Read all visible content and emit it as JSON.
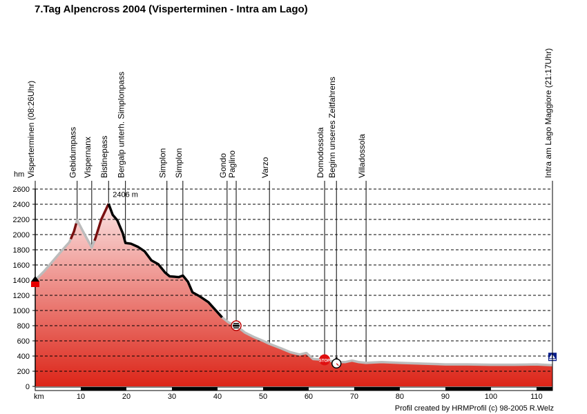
{
  "title": "7.Tag Alpencross 2004 (Visperterminen - Intra am Lago)",
  "credit": "Profil created by HRMProfil (c) 98-2005 R.Welz",
  "chart_data": {
    "type": "area",
    "title": "7.Tag Alpencross 2004 (Visperterminen - Intra am Lago)",
    "xlabel": "km",
    "ylabel": "hm",
    "xlim": [
      0,
      113.5
    ],
    "ylim": [
      0,
      2600
    ],
    "grid": true,
    "x_ticks": [
      10,
      20,
      30,
      40,
      50,
      60,
      70,
      80,
      90,
      100,
      110
    ],
    "y_ticks": [
      0,
      200,
      400,
      600,
      800,
      1000,
      1200,
      1400,
      1600,
      1800,
      2000,
      2200,
      2400,
      2600
    ],
    "max_annotation": {
      "label": "2406 m",
      "x": 16.1,
      "y": 2406
    },
    "profile": [
      [
        0,
        1400
      ],
      [
        2,
        1520
      ],
      [
        4,
        1660
      ],
      [
        6,
        1800
      ],
      [
        7.5,
        1900
      ],
      [
        8.5,
        2040
      ],
      [
        9.2,
        2190
      ],
      [
        10.5,
        2040
      ],
      [
        12.4,
        1830
      ],
      [
        13.2,
        1950
      ],
      [
        14.5,
        2200
      ],
      [
        16.1,
        2406
      ],
      [
        17,
        2260
      ],
      [
        18,
        2190
      ],
      [
        19.2,
        2020
      ],
      [
        19.8,
        1890
      ],
      [
        21,
        1880
      ],
      [
        22.5,
        1840
      ],
      [
        24,
        1780
      ],
      [
        25.5,
        1660
      ],
      [
        27,
        1610
      ],
      [
        28.5,
        1500
      ],
      [
        29.5,
        1450
      ],
      [
        31.5,
        1440
      ],
      [
        32.4,
        1460
      ],
      [
        33.5,
        1380
      ],
      [
        34.5,
        1240
      ],
      [
        36,
        1190
      ],
      [
        38,
        1110
      ],
      [
        39.5,
        1010
      ],
      [
        41,
        910
      ],
      [
        42.5,
        840
      ],
      [
        44.1,
        800
      ],
      [
        46,
        710
      ],
      [
        48,
        650
      ],
      [
        50,
        600
      ],
      [
        51.4,
        560
      ],
      [
        54,
        500
      ],
      [
        56,
        450
      ],
      [
        58,
        420
      ],
      [
        59.5,
        440
      ],
      [
        61,
        360
      ],
      [
        63.5,
        350
      ],
      [
        66.1,
        320
      ],
      [
        68,
        320
      ],
      [
        69.5,
        340
      ],
      [
        71,
        320
      ],
      [
        72.6,
        310
      ],
      [
        76,
        320
      ],
      [
        80,
        310
      ],
      [
        85,
        300
      ],
      [
        90,
        290
      ],
      [
        95,
        290
      ],
      [
        100,
        285
      ],
      [
        105,
        285
      ],
      [
        110,
        290
      ],
      [
        113.5,
        280
      ]
    ],
    "segments": [
      {
        "name": "ascent-gebidum",
        "color": "#7a1010",
        "range": [
          7.8,
          9.0
        ]
      },
      {
        "name": "ascent-bistine",
        "color": "#7a1010",
        "range": [
          13.0,
          16.1
        ]
      },
      {
        "name": "descent-simplon",
        "color": "#000000",
        "range": [
          16.1,
          41.0
        ]
      }
    ],
    "waypoints": [
      {
        "label": "Visperterminen (08:26Uhr)",
        "km": 0,
        "icon": "start-flag"
      },
      {
        "label": "Gebidumpass",
        "km": 9.2
      },
      {
        "label": "Vispernanx",
        "km": 12.4
      },
      {
        "label": "Bistinepass",
        "km": 16.1
      },
      {
        "label": "Bergalp unterh. Simplonpass",
        "km": 19.8
      },
      {
        "label": "Simplon",
        "km": 28.9
      },
      {
        "label": "Simplon",
        "km": 32.4
      },
      {
        "label": "Gondo",
        "km": 42.1
      },
      {
        "label": "Paglino",
        "km": 44.1,
        "icon": "border-crossing"
      },
      {
        "label": "Varzo",
        "km": 51.4
      },
      {
        "label": "Domodossola",
        "km": 63.5,
        "icon": "stop-sign"
      },
      {
        "label": "Beginn unseres Zeitfahrens",
        "km": 66.1,
        "icon": "stopwatch"
      },
      {
        "label": "Villadossola",
        "km": 72.6
      },
      {
        "label": "Intra am Lago Maggiore (21:17Uhr)",
        "km": 113.5,
        "icon": "sailboat"
      }
    ],
    "colors": {
      "fill_top": "#fbe3e3",
      "fill_bottom": "#dc2518",
      "profile_line": "#bcbcbc",
      "max_label": "#a01010"
    }
  }
}
